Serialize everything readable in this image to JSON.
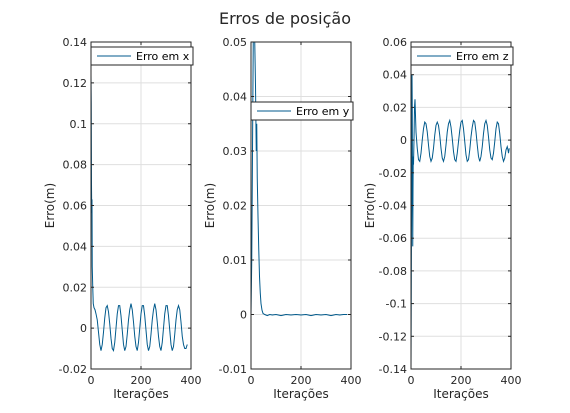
{
  "chart_data": {
    "title": "Erros de posição",
    "colors": {
      "line": "#005a8c",
      "axis": "#262626",
      "grid": "#dfdfdf",
      "legend_border": "#262626"
    },
    "panels": [
      {
        "type": "line",
        "xlabel": "Iterações",
        "ylabel": "Erro(m)",
        "xlim": [
          0,
          400
        ],
        "ylim": [
          -0.02,
          0.14
        ],
        "xticks": [
          0,
          200,
          400
        ],
        "xtick_labels": [
          "0",
          "200",
          "400"
        ],
        "yticks": [
          -0.02,
          0,
          0.02,
          0.04,
          0.06,
          0.08,
          0.1,
          0.12,
          0.14
        ],
        "ytick_labels": [
          "-0.02",
          "0",
          "0.02",
          "0.04",
          "0.06",
          "0.08",
          "0.1",
          "0.12",
          "0.14"
        ],
        "grid": true,
        "legend_position": "top-right",
        "series": [
          {
            "name": "Erro em x",
            "points": [
              [
                0,
                0.124
              ],
              [
                1,
                0.11
              ],
              [
                2,
                0.07
              ],
              [
                3,
                0.056
              ],
              [
                4,
                0.063
              ],
              [
                5,
                0.03
              ],
              [
                7,
                0.02
              ],
              [
                9,
                0.012
              ],
              [
                12,
                0.01
              ],
              [
                16,
                0.009
              ],
              [
                20,
                0.007
              ],
              [
                25,
                0.004
              ],
              [
                30,
                -0.002
              ],
              [
                35,
                -0.008
              ],
              [
                40,
                -0.011
              ],
              [
                45,
                -0.008
              ],
              [
                50,
                -0.002
              ],
              [
                55,
                0.005
              ],
              [
                60,
                0.01
              ],
              [
                65,
                0.011
              ],
              [
                70,
                0.008
              ],
              [
                75,
                0.002
              ],
              [
                80,
                -0.005
              ],
              [
                85,
                -0.01
              ],
              [
                90,
                -0.011
              ],
              [
                95,
                -0.007
              ],
              [
                100,
                0.0
              ],
              [
                105,
                0.007
              ],
              [
                110,
                0.011
              ],
              [
                115,
                0.011
              ],
              [
                120,
                0.006
              ],
              [
                125,
                -0.001
              ],
              [
                130,
                -0.008
              ],
              [
                135,
                -0.011
              ],
              [
                140,
                -0.009
              ],
              [
                145,
                -0.003
              ],
              [
                150,
                0.004
              ],
              [
                155,
                0.009
              ],
              [
                160,
                0.012
              ],
              [
                165,
                0.009
              ],
              [
                170,
                0.003
              ],
              [
                175,
                -0.004
              ],
              [
                180,
                -0.009
              ],
              [
                185,
                -0.011
              ],
              [
                190,
                -0.007
              ],
              [
                195,
                0.0
              ],
              [
                200,
                0.007
              ],
              [
                205,
                0.011
              ],
              [
                210,
                0.011
              ],
              [
                215,
                0.006
              ],
              [
                220,
                -0.001
              ],
              [
                225,
                -0.008
              ],
              [
                230,
                -0.011
              ],
              [
                235,
                -0.009
              ],
              [
                240,
                -0.003
              ],
              [
                245,
                0.004
              ],
              [
                250,
                0.009
              ],
              [
                255,
                0.012
              ],
              [
                260,
                0.009
              ],
              [
                265,
                0.003
              ],
              [
                270,
                -0.004
              ],
              [
                275,
                -0.009
              ],
              [
                280,
                -0.011
              ],
              [
                285,
                -0.007
              ],
              [
                290,
                0.0
              ],
              [
                295,
                0.007
              ],
              [
                300,
                0.011
              ],
              [
                305,
                0.011
              ],
              [
                310,
                0.006
              ],
              [
                315,
                -0.001
              ],
              [
                320,
                -0.008
              ],
              [
                325,
                -0.011
              ],
              [
                330,
                -0.009
              ],
              [
                335,
                -0.003
              ],
              [
                340,
                0.004
              ],
              [
                345,
                0.009
              ],
              [
                350,
                0.011
              ],
              [
                355,
                0.009
              ],
              [
                360,
                0.003
              ],
              [
                365,
                -0.004
              ],
              [
                370,
                -0.008
              ],
              [
                375,
                -0.01
              ],
              [
                380,
                -0.01
              ],
              [
                385,
                -0.008
              ]
            ]
          }
        ]
      },
      {
        "type": "line",
        "xlabel": "Iterações",
        "ylabel": "Erro(m)",
        "xlim": [
          0,
          400
        ],
        "ylim": [
          -0.01,
          0.05
        ],
        "xticks": [
          0,
          200,
          400
        ],
        "xtick_labels": [
          "0",
          "200",
          "400"
        ],
        "yticks": [
          -0.01,
          0,
          0.01,
          0.02,
          0.03,
          0.04,
          0.05
        ],
        "ytick_labels": [
          "-0.01",
          "0",
          "0.01",
          "0.02",
          "0.03",
          "0.04",
          "0.05"
        ],
        "grid": true,
        "legend_position": "top-right",
        "series": [
          {
            "name": "Erro em y",
            "points": [
              [
                0,
                0.0
              ],
              [
                3,
                0.01
              ],
              [
                6,
                0.03
              ],
              [
                9,
                0.05
              ],
              [
                12,
                0.05
              ],
              [
                15,
                0.05
              ],
              [
                18,
                0.042
              ],
              [
                21,
                0.03
              ],
              [
                23,
                0.035
              ],
              [
                25,
                0.025
              ],
              [
                28,
                0.018
              ],
              [
                31,
                0.012
              ],
              [
                34,
                0.007
              ],
              [
                37,
                0.004
              ],
              [
                40,
                0.002
              ],
              [
                44,
                0.0008
              ],
              [
                48,
                0.0002
              ],
              [
                55,
                0.0
              ],
              [
                65,
                -0.0002
              ],
              [
                75,
                0.0
              ],
              [
                85,
                -0.0001
              ],
              [
                100,
                0.0
              ],
              [
                120,
                -0.0002
              ],
              [
                140,
                0.0
              ],
              [
                160,
                -0.0001
              ],
              [
                180,
                0.0
              ],
              [
                200,
                -0.0001
              ],
              [
                220,
                0.0
              ],
              [
                240,
                -0.0002
              ],
              [
                260,
                0.0
              ],
              [
                280,
                -0.0001
              ],
              [
                300,
                0.0
              ],
              [
                320,
                -0.0002
              ],
              [
                340,
                0.0
              ],
              [
                355,
                -0.0001
              ],
              [
                370,
                0.0
              ],
              [
                385,
                0.0
              ]
            ]
          }
        ]
      },
      {
        "type": "line",
        "xlabel": "Iterações",
        "ylabel": "Erro(m)",
        "xlim": [
          0,
          400
        ],
        "ylim": [
          -0.14,
          0.06
        ],
        "xticks": [
          0,
          200,
          400
        ],
        "xtick_labels": [
          "0",
          "200",
          "400"
        ],
        "yticks": [
          -0.14,
          -0.12,
          -0.1,
          -0.08,
          -0.06,
          -0.04,
          -0.02,
          0,
          0.02,
          0.04,
          0.06
        ],
        "ytick_labels": [
          "-0.14",
          "-0.12",
          "-0.1",
          "-0.08",
          "-0.06",
          "-0.04",
          "-0.02",
          "0",
          "0.02",
          "0.04",
          "0.06"
        ],
        "grid": true,
        "legend_position": "top-right",
        "series": [
          {
            "name": "Erro em z",
            "points": [
              [
                0,
                -0.14
              ],
              [
                1,
                -0.1
              ],
              [
                2,
                -0.05
              ],
              [
                3,
                -0.02
              ],
              [
                4,
                0.04
              ],
              [
                5,
                0.02
              ],
              [
                6,
                -0.03
              ],
              [
                7,
                -0.065
              ],
              [
                8,
                -0.03
              ],
              [
                9,
                -0.01
              ],
              [
                10,
                -0.015
              ],
              [
                12,
                0.0
              ],
              [
                14,
                0.02
              ],
              [
                16,
                0.025
              ],
              [
                18,
                0.015
              ],
              [
                20,
                0.005
              ],
              [
                25,
                -0.005
              ],
              [
                30,
                -0.012
              ],
              [
                35,
                -0.013
              ],
              [
                40,
                -0.008
              ],
              [
                45,
                0.0
              ],
              [
                50,
                0.007
              ],
              [
                55,
                0.011
              ],
              [
                60,
                0.01
              ],
              [
                65,
                0.005
              ],
              [
                70,
                -0.003
              ],
              [
                75,
                -0.01
              ],
              [
                80,
                -0.013
              ],
              [
                85,
                -0.011
              ],
              [
                90,
                -0.005
              ],
              [
                95,
                0.003
              ],
              [
                100,
                0.009
              ],
              [
                105,
                0.011
              ],
              [
                110,
                0.009
              ],
              [
                115,
                0.003
              ],
              [
                120,
                -0.005
              ],
              [
                125,
                -0.011
              ],
              [
                130,
                -0.013
              ],
              [
                135,
                -0.01
              ],
              [
                140,
                -0.003
              ],
              [
                145,
                0.005
              ],
              [
                150,
                0.01
              ],
              [
                155,
                0.012
              ],
              [
                160,
                0.008
              ],
              [
                165,
                0.001
              ],
              [
                170,
                -0.007
              ],
              [
                175,
                -0.012
              ],
              [
                180,
                -0.013
              ],
              [
                185,
                -0.008
              ],
              [
                190,
                -0.001
              ],
              [
                195,
                0.006
              ],
              [
                200,
                0.011
              ],
              [
                205,
                0.012
              ],
              [
                210,
                0.007
              ],
              [
                215,
                -0.001
              ],
              [
                220,
                -0.009
              ],
              [
                225,
                -0.013
              ],
              [
                230,
                -0.012
              ],
              [
                235,
                -0.006
              ],
              [
                240,
                0.002
              ],
              [
                245,
                0.008
              ],
              [
                250,
                0.012
              ],
              [
                255,
                0.011
              ],
              [
                260,
                0.005
              ],
              [
                265,
                -0.003
              ],
              [
                270,
                -0.01
              ],
              [
                275,
                -0.013
              ],
              [
                280,
                -0.01
              ],
              [
                285,
                -0.004
              ],
              [
                290,
                0.004
              ],
              [
                295,
                0.01
              ],
              [
                300,
                0.012
              ],
              [
                305,
                0.009
              ],
              [
                310,
                0.002
              ],
              [
                315,
                -0.006
              ],
              [
                320,
                -0.011
              ],
              [
                325,
                -0.012
              ],
              [
                330,
                -0.008
              ],
              [
                335,
                -0.001
              ],
              [
                340,
                0.007
              ],
              [
                345,
                0.011
              ],
              [
                350,
                0.01
              ],
              [
                355,
                0.004
              ],
              [
                360,
                -0.004
              ],
              [
                365,
                -0.01
              ],
              [
                370,
                -0.013
              ],
              [
                375,
                -0.011
              ],
              [
                380,
                -0.006
              ],
              [
                385,
                -0.004
              ],
              [
                388,
                -0.006
              ],
              [
                390,
                -0.008
              ],
              [
                393,
                -0.005
              ]
            ]
          }
        ]
      }
    ]
  }
}
